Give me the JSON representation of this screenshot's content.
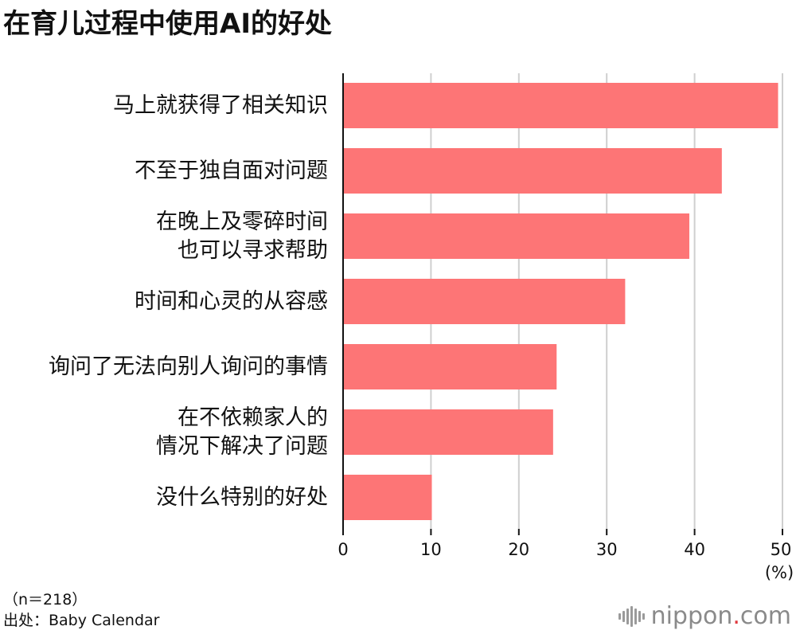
{
  "title": "在育儿过程中使用AI的好处",
  "footnotes": {
    "sample": "（n＝218）",
    "source": "出处：Baby Calendar"
  },
  "brand": {
    "name": "nippon",
    "dot": ".",
    "suffix": "com"
  },
  "colors": {
    "bar": "#fd7576",
    "grid": "#cfcfcf",
    "axis": "#111111",
    "text": "#111111"
  },
  "chart_data": {
    "type": "bar",
    "orientation": "horizontal",
    "categories": [
      [
        "马上就获得了相关知识"
      ],
      [
        "不至于独自面对问题"
      ],
      [
        "在晚上及零碎时间",
        "也可以寻求帮助"
      ],
      [
        "时间和心灵的从容感"
      ],
      [
        "询问了无法向别人询问的事情"
      ],
      [
        "在不依赖家人的",
        "情况下解决了问题"
      ],
      [
        "没什么特别的好处"
      ]
    ],
    "values": [
      49.5,
      43.1,
      39.4,
      32.1,
      24.3,
      23.9,
      10.1
    ],
    "xlim": [
      0,
      50
    ],
    "xticks": [
      0,
      10,
      20,
      30,
      40,
      50
    ],
    "xunit": "(%)",
    "grid": true
  }
}
